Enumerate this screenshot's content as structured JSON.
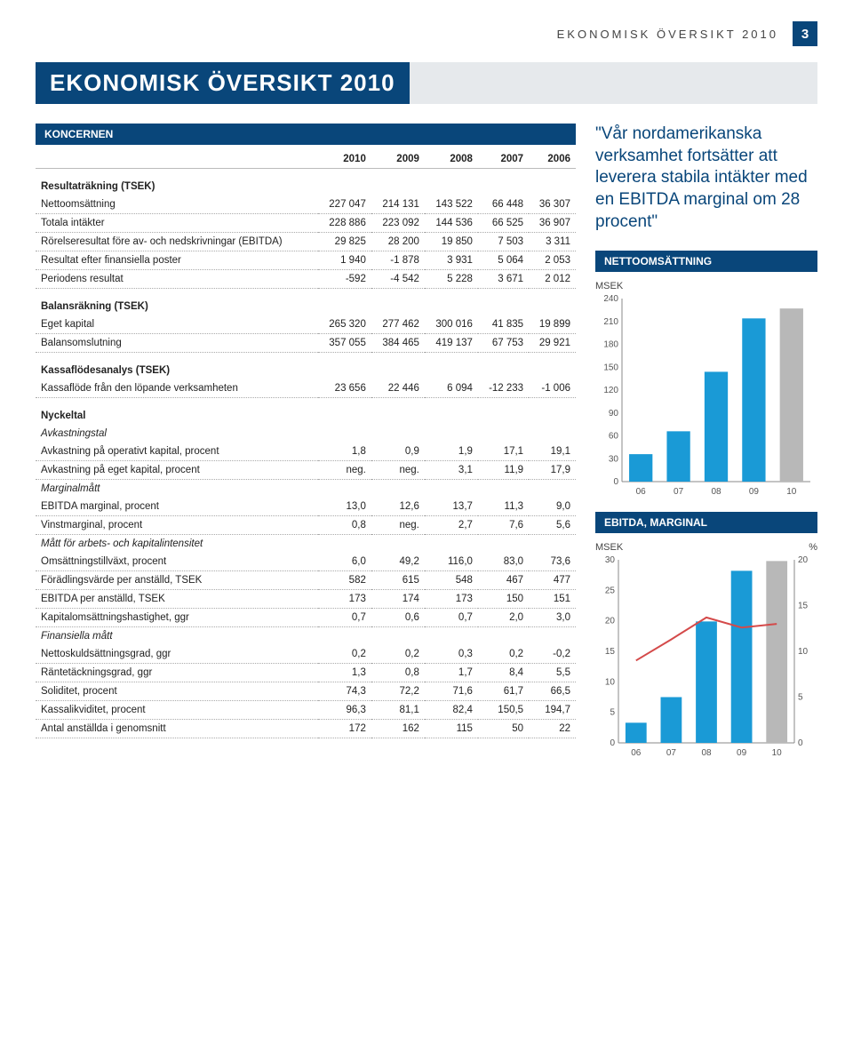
{
  "header": {
    "running_title": "EKONOMISK ÖVERSIKT 2010",
    "page_number": "3"
  },
  "banner": "EKONOMISK ÖVERSIKT 2010",
  "main_table": {
    "koncernen_label": "KONCERNEN",
    "years": [
      "2010",
      "2009",
      "2008",
      "2007",
      "2006"
    ],
    "sections": [
      {
        "head": "Resultaträkning (TSEK)",
        "rows": [
          {
            "l": "Nettoomsättning",
            "v": [
              "227 047",
              "214 131",
              "143 522",
              "66 448",
              "36 307"
            ]
          },
          {
            "l": "Totala intäkter",
            "v": [
              "228 886",
              "223 092",
              "144 536",
              "66 525",
              "36 907"
            ]
          },
          {
            "l": "Rörelseresultat före av- och nedskrivningar (EBITDA)",
            "v": [
              "29 825",
              "28 200",
              "19 850",
              "7 503",
              "3 311"
            ]
          },
          {
            "l": "Resultat efter finansiella poster",
            "v": [
              "1 940",
              "-1 878",
              "3 931",
              "5 064",
              "2 053"
            ]
          },
          {
            "l": "Periodens resultat",
            "v": [
              "-592",
              "-4 542",
              "5 228",
              "3 671",
              "2 012"
            ]
          }
        ]
      },
      {
        "head": "Balansräkning (TSEK)",
        "rows": [
          {
            "l": "Eget kapital",
            "v": [
              "265 320",
              "277 462",
              "300 016",
              "41 835",
              "19 899"
            ]
          },
          {
            "l": "Balansomslutning",
            "v": [
              "357 055",
              "384 465",
              "419 137",
              "67 753",
              "29 921"
            ]
          }
        ]
      },
      {
        "head": "Kassaflödesanalys (TSEK)",
        "rows": [
          {
            "l": "Kassaflöde från den löpande verksamheten",
            "v": [
              "23 656",
              "22 446",
              "6 094",
              "-12 233",
              "-1 006"
            ]
          }
        ]
      },
      {
        "head": "Nyckeltal",
        "italic_sub": "Avkastningstal",
        "rows": [
          {
            "l": "Avkastning på operativt kapital, procent",
            "v": [
              "1,8",
              "0,9",
              "1,9",
              "17,1",
              "19,1"
            ]
          },
          {
            "l": "Avkastning på eget kapital, procent",
            "v": [
              "neg.",
              "neg.",
              "3,1",
              "11,9",
              "17,9"
            ]
          }
        ]
      },
      {
        "italic_sub": "Marginalmått",
        "rows": [
          {
            "l": "EBITDA marginal, procent",
            "v": [
              "13,0",
              "12,6",
              "13,7",
              "11,3",
              "9,0"
            ]
          },
          {
            "l": "Vinstmarginal, procent",
            "v": [
              "0,8",
              "neg.",
              "2,7",
              "7,6",
              "5,6"
            ]
          }
        ]
      },
      {
        "italic_sub": "Mått för arbets- och kapitalintensitet",
        "rows": [
          {
            "l": "Omsättningstillväxt, procent",
            "v": [
              "6,0",
              "49,2",
              "116,0",
              "83,0",
              "73,6"
            ]
          },
          {
            "l": "Förädlingsvärde per anställd, TSEK",
            "v": [
              "582",
              "615",
              "548",
              "467",
              "477"
            ]
          },
          {
            "l": "EBITDA per anställd, TSEK",
            "v": [
              "173",
              "174",
              "173",
              "150",
              "151"
            ]
          },
          {
            "l": "Kapitalomsättningshastighet, ggr",
            "v": [
              "0,7",
              "0,6",
              "0,7",
              "2,0",
              "3,0"
            ]
          }
        ]
      },
      {
        "italic_sub": "Finansiella mått",
        "rows": [
          {
            "l": "Nettoskuldsättningsgrad, ggr",
            "v": [
              "0,2",
              "0,2",
              "0,3",
              "0,2",
              "-0,2"
            ]
          },
          {
            "l": "Räntetäckningsgrad, ggr",
            "v": [
              "1,3",
              "0,8",
              "1,7",
              "8,4",
              "5,5"
            ]
          },
          {
            "l": "Soliditet, procent",
            "v": [
              "74,3",
              "72,2",
              "71,6",
              "61,7",
              "66,5"
            ]
          },
          {
            "l": "Kassalikviditet, procent",
            "v": [
              "96,3",
              "81,1",
              "82,4",
              "150,5",
              "194,7"
            ]
          },
          {
            "l": "Antal anställda i genomsnitt",
            "v": [
              "172",
              "162",
              "115",
              "50",
              "22"
            ]
          }
        ]
      }
    ]
  },
  "quote": "\"Vår nordamerikanska verksamhet fortsätter att leverera stabila intäkter med en EBITDA marginal om 28 procent\"",
  "chart1": {
    "title": "NETTOOMSÄTTNING",
    "type": "bar",
    "y_label": "MSEK",
    "categories": [
      "06",
      "07",
      "08",
      "09",
      "10"
    ],
    "values": [
      36,
      66,
      144,
      214,
      227
    ],
    "ylim": [
      0,
      240
    ],
    "ytick_step": 30,
    "yticks": [
      "240",
      "210",
      "180",
      "150",
      "120",
      "90",
      "60",
      "30",
      "0"
    ],
    "bar_color": "#1a9ad6",
    "last_bar_color": "#b8b8b8",
    "background_color": "#ffffff",
    "axis_color": "#888888",
    "label_fontsize": 11
  },
  "chart2": {
    "title": "EBITDA, MARGINAL",
    "type": "bar_line",
    "y_left_label": "MSEK",
    "y_right_label": "%",
    "categories": [
      "06",
      "07",
      "08",
      "09",
      "10"
    ],
    "bar_values": [
      3.3,
      7.5,
      19.9,
      28.2,
      29.8
    ],
    "line_values": [
      9.0,
      11.3,
      13.7,
      12.6,
      13.0
    ],
    "left_ylim": [
      0,
      30
    ],
    "left_ytick_step": 5,
    "left_yticks": [
      "30",
      "25",
      "20",
      "15",
      "10",
      "5",
      "0"
    ],
    "right_ylim": [
      0,
      20
    ],
    "right_ytick_step": 5,
    "right_yticks": [
      "20",
      "15",
      "10",
      "5",
      "0"
    ],
    "bar_color": "#1a9ad6",
    "last_bar_color": "#b8b8b8",
    "line_color": "#d44a4a",
    "background_color": "#ffffff",
    "axis_color": "#888888",
    "label_fontsize": 11
  }
}
